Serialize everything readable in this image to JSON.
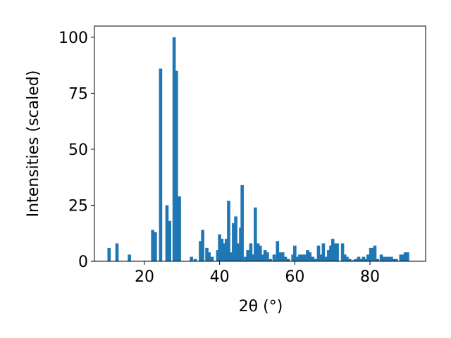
{
  "chart_data": {
    "type": "bar",
    "xlabel": "2θ (°)",
    "ylabel": "Intensities (scaled)",
    "color": "#1f77b4",
    "x": [
      10.6,
      12.7,
      16.0,
      22.2,
      22.9,
      24.3,
      26.0,
      26.7,
      27.9,
      28.5,
      29.3,
      32.5,
      33.5,
      34.9,
      35.5,
      36.6,
      37.2,
      38.0,
      39.5,
      40.0,
      40.6,
      41.2,
      41.8,
      42.4,
      43.0,
      43.7,
      44.3,
      45.0,
      45.6,
      46.0,
      46.9,
      47.5,
      48.3,
      48.8,
      49.5,
      50.2,
      50.8,
      51.3,
      52.1,
      52.7,
      53.5,
      54.5,
      55.4,
      56.0,
      56.8,
      57.5,
      58.3,
      59.5,
      60.0,
      60.6,
      61.3,
      62.0,
      62.6,
      63.4,
      64.0,
      64.8,
      65.5,
      66.3,
      66.8,
      67.6,
      68.2,
      69.0,
      69.6,
      70.1,
      70.6,
      71.3,
      72.7,
      73.3,
      73.9,
      74.6,
      75.5,
      76.2,
      77.0,
      77.6,
      78.3,
      79.0,
      79.5,
      80.2,
      80.8,
      81.3,
      82.0,
      83.0,
      83.6,
      84.4,
      85.0,
      85.7,
      86.4,
      87.0,
      88.2,
      88.8,
      89.4,
      90.0
    ],
    "values": [
      6,
      8,
      3,
      14,
      13,
      86,
      25,
      18,
      100,
      85,
      29,
      2,
      1,
      9,
      14,
      6,
      4,
      2,
      5,
      12,
      10,
      8,
      10,
      27,
      4,
      17,
      20,
      8,
      15,
      34,
      2,
      5,
      8,
      3,
      24,
      8,
      7,
      3,
      5,
      4,
      1,
      3,
      9,
      4,
      4,
      2,
      1,
      3,
      7,
      2,
      3,
      3,
      3,
      5,
      4,
      2,
      1,
      7,
      3,
      8,
      2,
      5,
      7,
      10,
      8,
      8,
      8,
      3,
      2,
      1,
      0.5,
      1,
      2,
      1,
      2,
      1,
      3,
      6,
      6,
      7,
      1,
      3,
      2,
      2,
      2,
      2,
      1,
      1,
      3,
      3,
      4,
      4
    ],
    "xlim": [
      6.7,
      94.8
    ],
    "ylim": [
      0,
      105
    ],
    "xticks": [
      20,
      40,
      60,
      80
    ],
    "yticks": [
      0,
      25,
      50,
      75,
      100
    ]
  }
}
